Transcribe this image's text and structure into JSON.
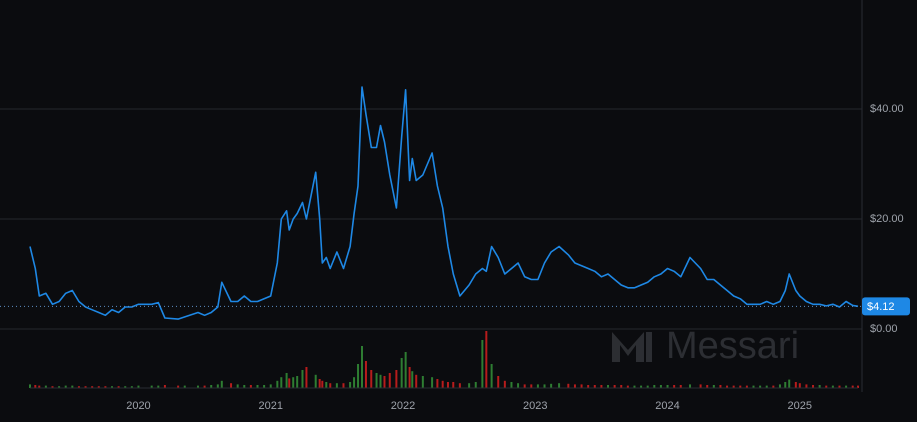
{
  "chart_data": {
    "type": "line",
    "watermark": "Messari",
    "x": [
      2019.18,
      2019.22,
      2019.25,
      2019.3,
      2019.35,
      2019.4,
      2019.45,
      2019.5,
      2019.55,
      2019.6,
      2019.65,
      2019.7,
      2019.75,
      2019.8,
      2019.85,
      2019.9,
      2019.95,
      2020.0,
      2020.1,
      2020.15,
      2020.2,
      2020.3,
      2020.35,
      2020.45,
      2020.5,
      2020.55,
      2020.6,
      2020.63,
      2020.7,
      2020.75,
      2020.8,
      2020.85,
      2020.9,
      2020.95,
      2021.0,
      2021.05,
      2021.08,
      2021.12,
      2021.14,
      2021.17,
      2021.2,
      2021.24,
      2021.27,
      2021.34,
      2021.37,
      2021.39,
      2021.42,
      2021.45,
      2021.5,
      2021.55,
      2021.6,
      2021.63,
      2021.66,
      2021.69,
      2021.72,
      2021.76,
      2021.8,
      2021.83,
      2021.86,
      2021.9,
      2021.95,
      2021.99,
      2022.02,
      2022.05,
      2022.07,
      2022.1,
      2022.15,
      2022.22,
      2022.26,
      2022.3,
      2022.34,
      2022.38,
      2022.43,
      2022.5,
      2022.55,
      2022.6,
      2022.63,
      2022.67,
      2022.72,
      2022.77,
      2022.82,
      2022.87,
      2022.92,
      2022.97,
      2023.02,
      2023.07,
      2023.12,
      2023.18,
      2023.25,
      2023.3,
      2023.35,
      2023.4,
      2023.45,
      2023.5,
      2023.55,
      2023.6,
      2023.65,
      2023.7,
      2023.75,
      2023.8,
      2023.85,
      2023.9,
      2023.95,
      2024.0,
      2024.05,
      2024.1,
      2024.17,
      2024.25,
      2024.3,
      2024.35,
      2024.4,
      2024.45,
      2024.5,
      2024.55,
      2024.6,
      2024.65,
      2024.7,
      2024.75,
      2024.8,
      2024.85,
      2024.89,
      2024.92,
      2024.97,
      2025.0,
      2025.05,
      2025.1,
      2025.15,
      2025.2,
      2025.25,
      2025.3,
      2025.35,
      2025.4,
      2025.44
    ],
    "series": [
      {
        "name": "Price",
        "color": "#1e88e5",
        "values": [
          15,
          11,
          6,
          6.5,
          4.5,
          5,
          6.5,
          7,
          5,
          4,
          3.5,
          3,
          2.5,
          3.5,
          3,
          4,
          4,
          4.5,
          4.5,
          4.8,
          2,
          1.8,
          2.2,
          3,
          2.5,
          3,
          4,
          8.5,
          5,
          5,
          6,
          5,
          5,
          5.5,
          6,
          12,
          20,
          21.5,
          18,
          20,
          21,
          23,
          20,
          28.5,
          20,
          12,
          13,
          11,
          14,
          11,
          15,
          21,
          26,
          44,
          39,
          33,
          33,
          37,
          34,
          28,
          22,
          35,
          43.5,
          27,
          31,
          27,
          28,
          32,
          26,
          22,
          15,
          10,
          6,
          8,
          10,
          11,
          10.5,
          15,
          13,
          10,
          11,
          12,
          9.5,
          9,
          9,
          12,
          14,
          15,
          13.5,
          12,
          11.5,
          11,
          10.5,
          9.5,
          10,
          9,
          8,
          7.5,
          7.5,
          8,
          8.5,
          9.5,
          10,
          11,
          10.5,
          9.5,
          13,
          11,
          9,
          9,
          8,
          7,
          6,
          5.5,
          4.5,
          4.5,
          4.5,
          5,
          4.5,
          5,
          7,
          10,
          7,
          6,
          5,
          4.5,
          4.5,
          4.2,
          4.5,
          4,
          5,
          4.3,
          4.12
        ]
      },
      {
        "name": "Volume",
        "axis": "y2",
        "up_color": "#2e7d32",
        "down_color": "#b71c1c",
        "values": [
          6,
          5,
          4,
          4,
          3,
          3,
          4,
          4,
          3,
          3,
          3,
          3,
          3,
          3,
          3,
          3,
          3,
          4,
          4,
          4,
          5,
          4,
          4,
          4,
          4,
          5,
          6,
          12,
          8,
          6,
          5,
          5,
          5,
          5,
          6,
          12,
          18,
          25,
          16,
          18,
          20,
          30,
          35,
          22,
          15,
          12,
          10,
          8,
          8,
          8,
          10,
          18,
          40,
          70,
          45,
          30,
          25,
          22,
          20,
          25,
          30,
          50,
          60,
          35,
          28,
          22,
          20,
          18,
          15,
          12,
          10,
          10,
          8,
          8,
          10,
          80,
          95,
          40,
          20,
          12,
          10,
          8,
          6,
          6,
          6,
          6,
          7,
          8,
          7,
          6,
          6,
          5,
          5,
          5,
          5,
          5,
          5,
          4,
          4,
          4,
          4,
          5,
          5,
          5,
          5,
          5,
          6,
          6,
          5,
          5,
          5,
          4,
          4,
          4,
          4,
          4,
          4,
          4,
          4,
          6,
          10,
          14,
          10,
          8,
          6,
          5,
          5,
          4,
          4,
          4,
          4,
          4,
          4
        ]
      }
    ],
    "xlim": [
      2019.18,
      2025.44
    ],
    "xticks": [
      2020,
      2021,
      2022,
      2023,
      2024,
      2025
    ],
    "ylim": [
      0,
      60
    ],
    "yticks": [
      {
        "value": 0,
        "label": "$0.00"
      },
      {
        "value": 20,
        "label": "$20.00"
      },
      {
        "value": 40,
        "label": "$40.00"
      }
    ],
    "y2lim": [
      0,
      100
    ],
    "current_price": {
      "value": 4.12,
      "label": "$4.12"
    },
    "grid": true
  }
}
